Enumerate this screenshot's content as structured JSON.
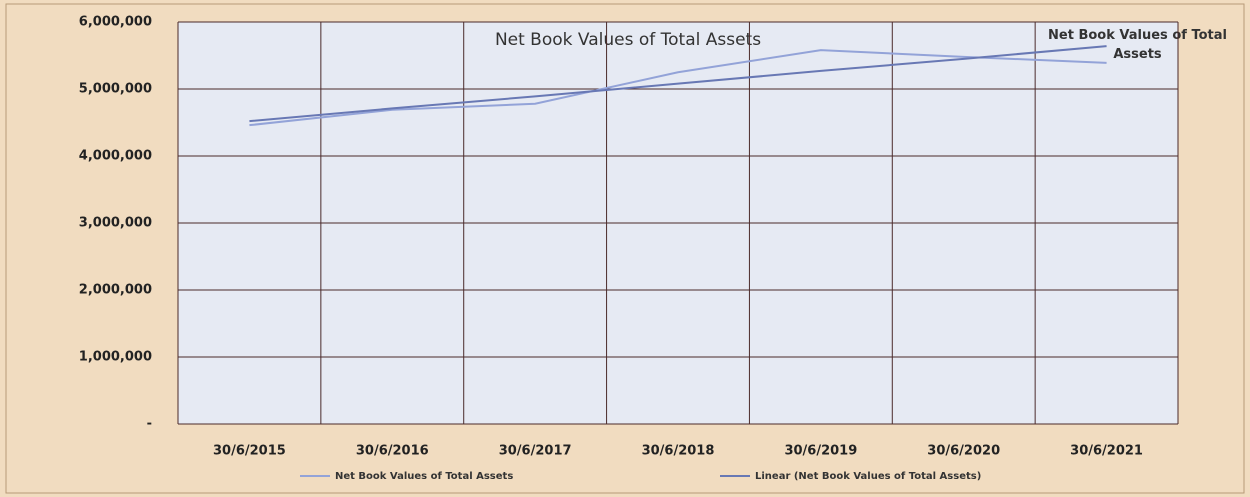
{
  "chart_data": {
    "type": "line",
    "title": "Net Book Values of Total Assets",
    "annotations": [
      "Net Book Values of Total Assets"
    ],
    "categories": [
      "30/6/2015",
      "30/6/2016",
      "30/6/2017",
      "30/6/2018",
      "30/6/2019",
      "30/6/2020",
      "30/6/2021"
    ],
    "series": [
      {
        "name": "Net Book Values of Total Assets",
        "color": "#93a3d8",
        "values": [
          4460000,
          4690000,
          4780000,
          5250000,
          5580000,
          5480000,
          5390000
        ]
      },
      {
        "name": "Linear (Net Book Values of Total Assets)",
        "color": "#6878b4",
        "values": [
          4520000,
          4710000,
          4890000,
          5080000,
          5270000,
          5450000,
          5640000
        ]
      }
    ],
    "ylim": [
      0,
      6000000
    ],
    "yticks": [
      {
        "value": 0,
        "label": "-"
      },
      {
        "value": 1000000,
        "label": "1,000,000"
      },
      {
        "value": 2000000,
        "label": "2,000,000"
      },
      {
        "value": 3000000,
        "label": "3,000,000"
      },
      {
        "value": 4000000,
        "label": "4,000,000"
      },
      {
        "value": 5000000,
        "label": "5,000,000"
      },
      {
        "value": 6000000,
        "label": "6,000,000"
      }
    ],
    "grid": true,
    "legend": "bottom"
  }
}
